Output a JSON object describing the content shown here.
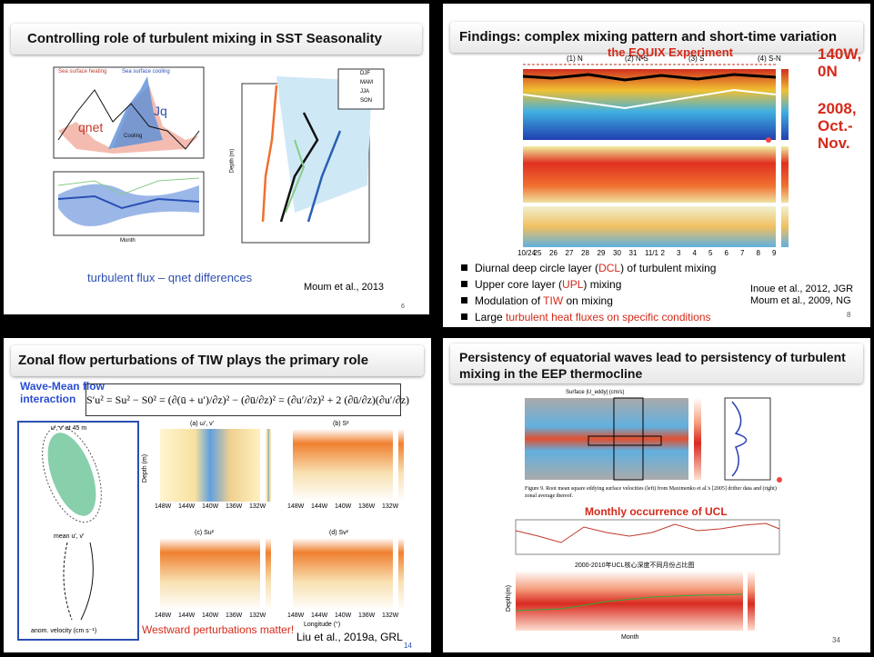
{
  "slides": [
    {
      "title": "Controlling role of turbulent mixing in SST Seasonality",
      "figure_labels": [
        "qnet",
        "Jq",
        "Sea surface heating",
        "Sea surface cooling",
        "Cooling",
        "DJF",
        "MAM",
        "JJA",
        "SON",
        "Month",
        "Depth (m)"
      ],
      "note": "turbulent flux – qnet  differences",
      "citation": "Moum et al., 2013",
      "page": "6"
    },
    {
      "title": "Findings: complex mixing pattern and short-time variation",
      "subtitle": "the EQUIX Experiment",
      "location": "140W, 0N",
      "period": "2008, Oct.- Nov.",
      "phases": [
        "(1) N",
        "(2) N-S",
        "(3) S",
        "(4) S-N"
      ],
      "dates": [
        "10/24",
        "25",
        "26",
        "27",
        "28",
        "29",
        "30",
        "31",
        "11/1",
        "2",
        "3",
        "4",
        "5",
        "6",
        "7",
        "8",
        "9"
      ],
      "bullets": [
        [
          "Diurnal deep circle layer (",
          "DCL",
          ") of turbulent mixing"
        ],
        [
          "Upper core layer (",
          "UPL",
          ") mixing"
        ],
        [
          "Modulation of ",
          "TIW",
          " on mixing"
        ],
        [
          "Large ",
          "turbulent heat fluxes on specific conditions"
        ]
      ],
      "citations": [
        "Inoue et al., 2012, JGR",
        "Moum et al., 2009, NG"
      ],
      "page": "8"
    },
    {
      "title": "Zonal flow perturbations of TIW plays the primary role",
      "label": "Wave-Mean flow interaction",
      "equation": "S′u² = Su² − S0² = (∂(ū + u′)/∂z)² − (∂ū/∂z)² = (∂u′/∂z)² + 2 (∂ū/∂z)(∂u′/∂z)",
      "panel_titles": [
        "u′, v′ at 45 m",
        "mean u′, v′",
        "(a) ω′, ν′",
        "(b) S²",
        "(c) Su²",
        "(d) Sv²"
      ],
      "axis_labels": [
        "anom. velocity (cm s⁻¹)",
        "Longitude (°)",
        "Depth (m)"
      ],
      "longitudes": [
        "148W",
        "144W",
        "140W",
        "136W",
        "132W"
      ],
      "emphasis": "Westward perturbations matter!",
      "citation": "Liu et al., 2019a, GRL",
      "page": "14"
    },
    {
      "title": "Persistency of equatorial waves lead to persistency of turbulent mixing in the EEP thermocline",
      "map_title": "Surface |U_eddy| (cm/s)",
      "caption": "Figure 9.  Root mean square eddying surface velocities (left) from Maximenko et al.'s [2005] drifter data and (right) zonal average thereof.",
      "subtitle": "Monthly occurrence of UCL",
      "contour_title": "2000-2010年UCL核心深度不同月份占比图",
      "axis_labels": [
        "Month",
        "Depth(m)"
      ],
      "page": "34"
    }
  ]
}
